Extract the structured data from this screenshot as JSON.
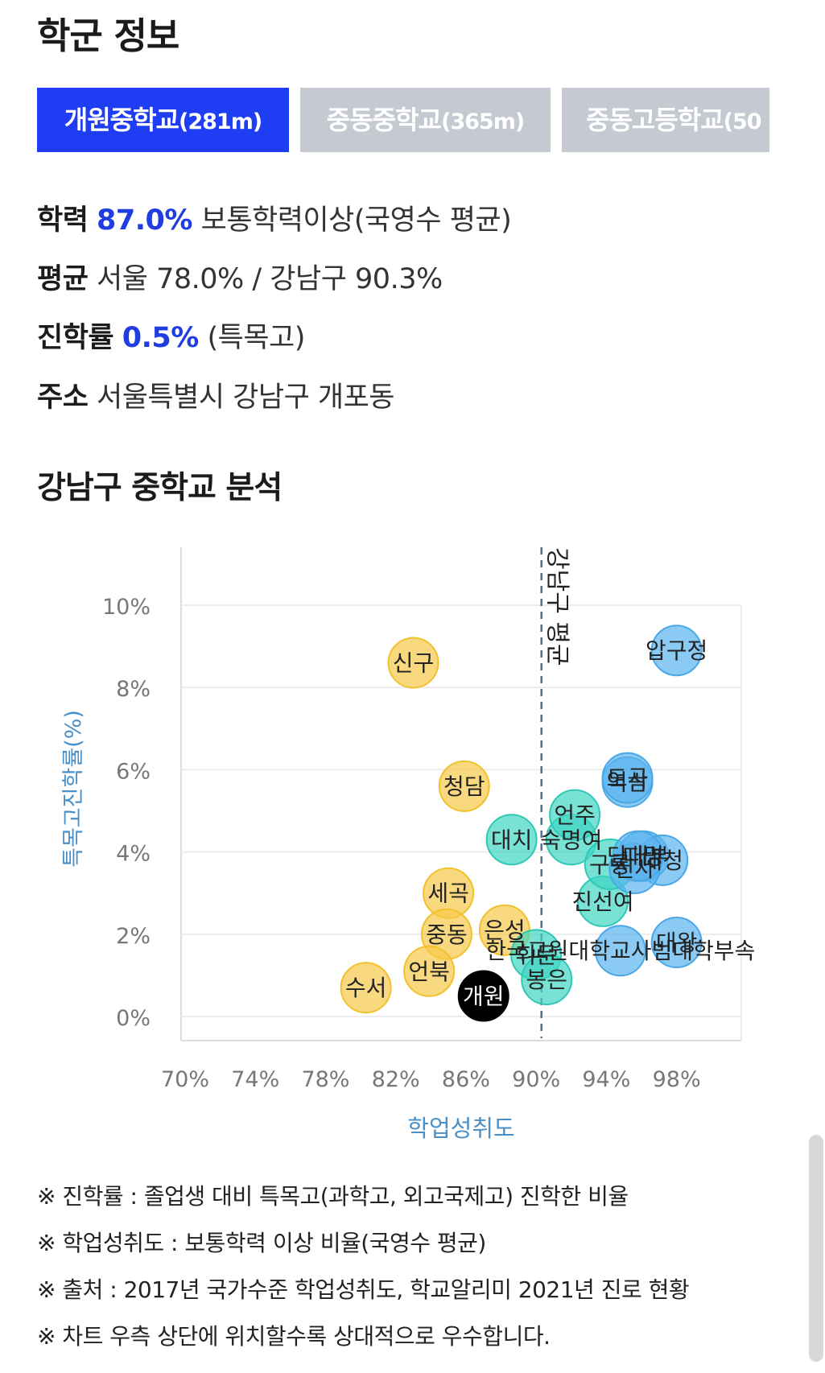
{
  "title": "학군 정보",
  "tabs": [
    {
      "name": "개원중학교",
      "dist": "(281m)",
      "active": true
    },
    {
      "name": "중동중학교",
      "dist": "(365m)",
      "active": false
    },
    {
      "name": "중동고등학교",
      "dist": "(50",
      "active": false
    }
  ],
  "info": {
    "achievement": {
      "label": "학력",
      "value": "87.0%",
      "desc": "보통학력이상(국영수 평균)"
    },
    "average": {
      "label": "평균",
      "text": "서울 78.0% / 강남구 90.3%"
    },
    "advancement": {
      "label": "진학률",
      "value": "0.5%",
      "desc": "(특목고)"
    },
    "address": {
      "label": "주소",
      "text": "서울특별시 강남구 개포동"
    }
  },
  "section_title": "강남구 중학교 분석",
  "colors": {
    "accent": "#1f3df2",
    "yellow": "#f7c948",
    "teal": "#3fd6c3",
    "blue": "#5ab4ee",
    "highlight": "#000000",
    "axis_label": "#4a90c8",
    "avg_line": "#4f7391"
  },
  "chart_data": {
    "type": "scatter",
    "xlabel": "학업성취도",
    "ylabel": "특목고진학률(%)",
    "xlim": [
      70,
      100
    ],
    "ylim": [
      0,
      10.5
    ],
    "xticks": [
      "70%",
      "74%",
      "78%",
      "82%",
      "86%",
      "90%",
      "94%",
      "98%"
    ],
    "yticks": [
      "0%",
      "2%",
      "4%",
      "6%",
      "8%",
      "10%"
    ],
    "reference_line": {
      "x": 90.3,
      "label": "강남구 평균"
    },
    "points": [
      {
        "label": "신구",
        "x": 83.0,
        "y": 8.6,
        "group": "yellow"
      },
      {
        "label": "청담",
        "x": 85.9,
        "y": 5.6,
        "group": "yellow"
      },
      {
        "label": "세곡",
        "x": 85.0,
        "y": 3.0,
        "group": "yellow"
      },
      {
        "label": "중동",
        "x": 84.9,
        "y": 2.0,
        "group": "yellow"
      },
      {
        "label": "은성",
        "x": 88.2,
        "y": 2.1,
        "group": "yellow"
      },
      {
        "label": "언북",
        "x": 83.9,
        "y": 1.1,
        "group": "yellow"
      },
      {
        "label": "수서",
        "x": 80.3,
        "y": 0.7,
        "group": "yellow"
      },
      {
        "label": "개원",
        "x": 87.0,
        "y": 0.5,
        "group": "highlight"
      },
      {
        "label": "대치",
        "x": 88.6,
        "y": 4.3,
        "group": "teal"
      },
      {
        "label": "숙명여",
        "x": 92.0,
        "y": 4.3,
        "group": "teal"
      },
      {
        "label": "언주",
        "x": 92.2,
        "y": 4.9,
        "group": "teal"
      },
      {
        "label": "진선여",
        "x": 93.8,
        "y": 2.8,
        "group": "teal"
      },
      {
        "label": "구룡",
        "x": 94.2,
        "y": 3.7,
        "group": "teal"
      },
      {
        "label": "휘문",
        "x": 90.0,
        "y": 1.5,
        "group": "teal"
      },
      {
        "label": "봉은",
        "x": 90.6,
        "y": 0.9,
        "group": "teal"
      },
      {
        "label": "압구정",
        "x": 98.0,
        "y": 8.9,
        "group": "blue"
      },
      {
        "label": "역삼",
        "x": 95.2,
        "y": 5.7,
        "group": "blue"
      },
      {
        "label": "도곡",
        "x": 95.2,
        "y": 5.8,
        "group": "blue"
      },
      {
        "label": "대명",
        "x": 96.1,
        "y": 3.9,
        "group": "blue"
      },
      {
        "label": "대청",
        "x": 97.2,
        "y": 3.8,
        "group": "blue"
      },
      {
        "label": "신사",
        "x": 95.6,
        "y": 3.6,
        "group": "blue"
      },
      {
        "label": "단대부",
        "x": 95.8,
        "y": 3.9,
        "group": "blue"
      },
      {
        "label": "한국교원대학교사범대학부속",
        "x": 94.8,
        "y": 1.6,
        "group": "blue"
      },
      {
        "label": "대왕",
        "x": 98.0,
        "y": 1.8,
        "group": "blue"
      }
    ]
  },
  "notes": [
    "※ 진학률 : 졸업생 대비 특목고(과학고, 외고국제고) 진학한 비율",
    "※ 학업성취도 : 보통학력 이상 비율(국영수 평균)",
    "※ 출처 : 2017년 국가수준 학업성취도, 학교알리미 2021년 진로 현황",
    "※ 차트 우측 상단에 위치할수록 상대적으로 우수합니다."
  ]
}
